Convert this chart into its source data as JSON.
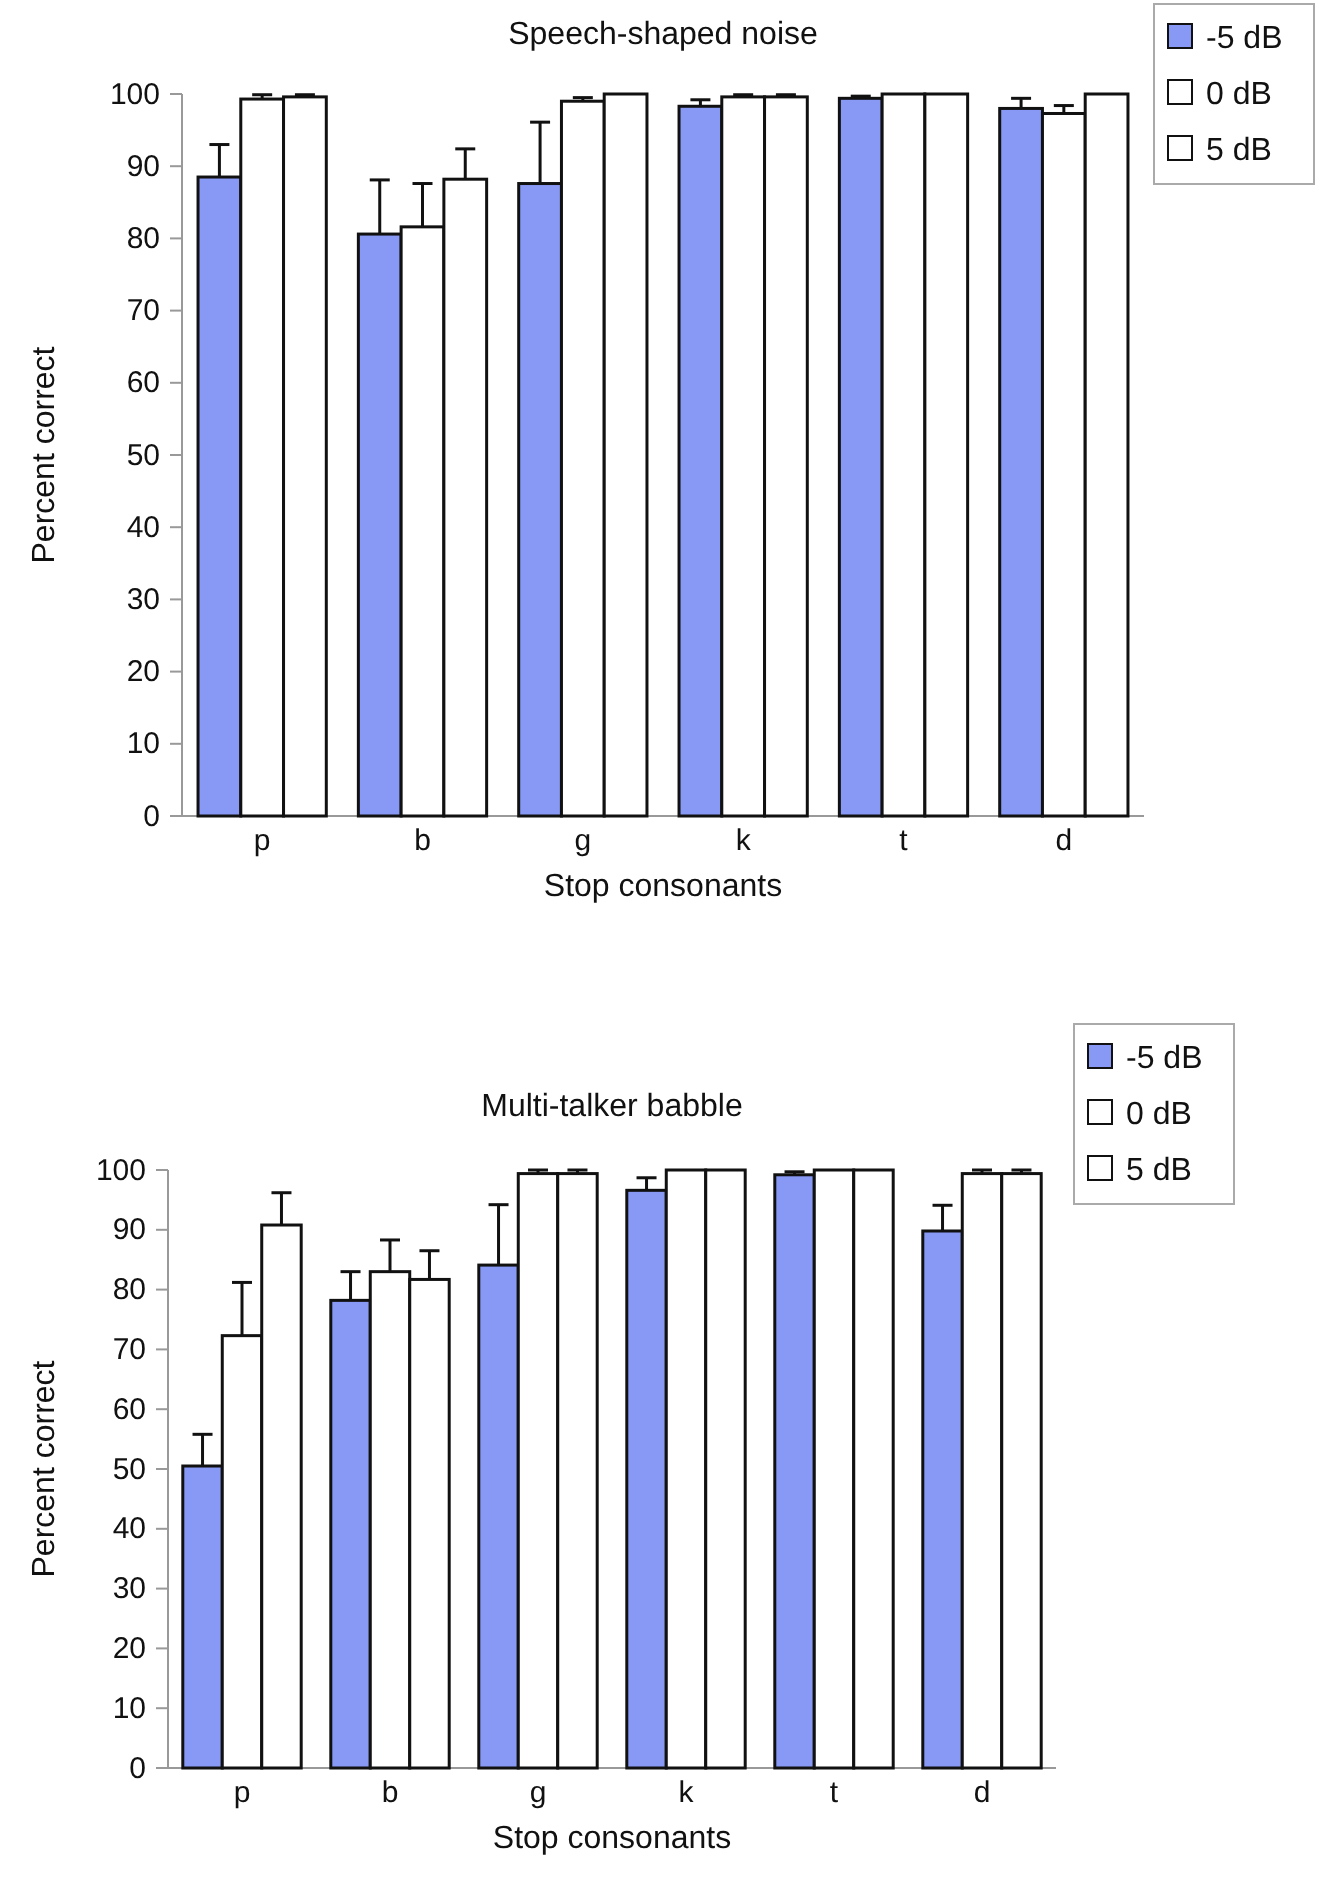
{
  "chart_data": [
    {
      "type": "bar",
      "title": "Speech-shaped noise",
      "xlabel": "Stop consonants",
      "ylabel": "Percent correct",
      "categories": [
        "p",
        "b",
        "g",
        "k",
        "t",
        "d"
      ],
      "series": [
        {
          "name": "-5 dB",
          "color": "#8899f5",
          "values": [
            88.5,
            80.6,
            87.6,
            98.3,
            99.4,
            98.0
          ],
          "errors": [
            [
              88.5,
              93.0
            ],
            [
              80.6,
              88.1
            ],
            [
              87.6,
              96.1
            ],
            [
              98.3,
              99.2
            ],
            [
              99.4,
              99.7
            ],
            [
              98.0,
              99.4
            ]
          ]
        },
        {
          "name": "0 dB",
          "color": "#ffffff",
          "values": [
            99.3,
            81.6,
            99.0,
            99.6,
            100,
            97.3
          ],
          "errors": [
            [
              99.3,
              99.9
            ],
            [
              81.6,
              87.6
            ],
            [
              99.0,
              99.5
            ],
            [
              99.6,
              99.9
            ],
            null,
            [
              97.3,
              98.4
            ]
          ]
        },
        {
          "name": "5 dB",
          "color": "#ffffff",
          "values": [
            99.6,
            88.2,
            100,
            99.6,
            100,
            100
          ],
          "errors": [
            [
              99.6,
              99.9
            ],
            [
              88.2,
              92.4
            ],
            null,
            [
              99.6,
              99.9
            ],
            null,
            null
          ]
        }
      ],
      "ylim": [
        0,
        100
      ],
      "yticks": [
        0,
        10,
        20,
        30,
        40,
        50,
        60,
        70,
        80,
        90,
        100
      ],
      "grid": false,
      "legend": "top right"
    },
    {
      "type": "bar",
      "title": "Multi-talker babble",
      "xlabel": "Stop consonants",
      "ylabel": "Percent correct",
      "categories": [
        "p",
        "b",
        "g",
        "k",
        "t",
        "d"
      ],
      "series": [
        {
          "name": "-5 dB",
          "color": "#8899f5",
          "values": [
            50.5,
            78.2,
            84.1,
            96.6,
            99.2,
            89.8
          ],
          "errors": [
            [
              50.5,
              55.8
            ],
            [
              78.2,
              83.0
            ],
            [
              84.1,
              94.2
            ],
            [
              96.6,
              98.7
            ],
            [
              99.2,
              99.7
            ],
            [
              89.8,
              94.1
            ]
          ]
        },
        {
          "name": "0 dB",
          "color": "#ffffff",
          "values": [
            72.3,
            83.0,
            99.4,
            100,
            100,
            99.4
          ],
          "errors": [
            [
              72.3,
              81.2
            ],
            [
              83.0,
              88.3
            ],
            [
              99.4,
              100
            ],
            null,
            null,
            [
              99.4,
              100
            ]
          ]
        },
        {
          "name": "5 dB",
          "color": "#ffffff",
          "values": [
            90.8,
            81.7,
            99.4,
            100,
            100,
            99.4
          ],
          "errors": [
            [
              90.8,
              96.2
            ],
            [
              81.7,
              86.5
            ],
            [
              99.4,
              100
            ],
            null,
            null,
            [
              99.4,
              100
            ]
          ]
        }
      ],
      "ylim": [
        0,
        100
      ],
      "yticks": [
        0,
        10,
        20,
        30,
        40,
        50,
        60,
        70,
        80,
        90,
        100
      ],
      "grid": false,
      "legend": "top right"
    }
  ]
}
